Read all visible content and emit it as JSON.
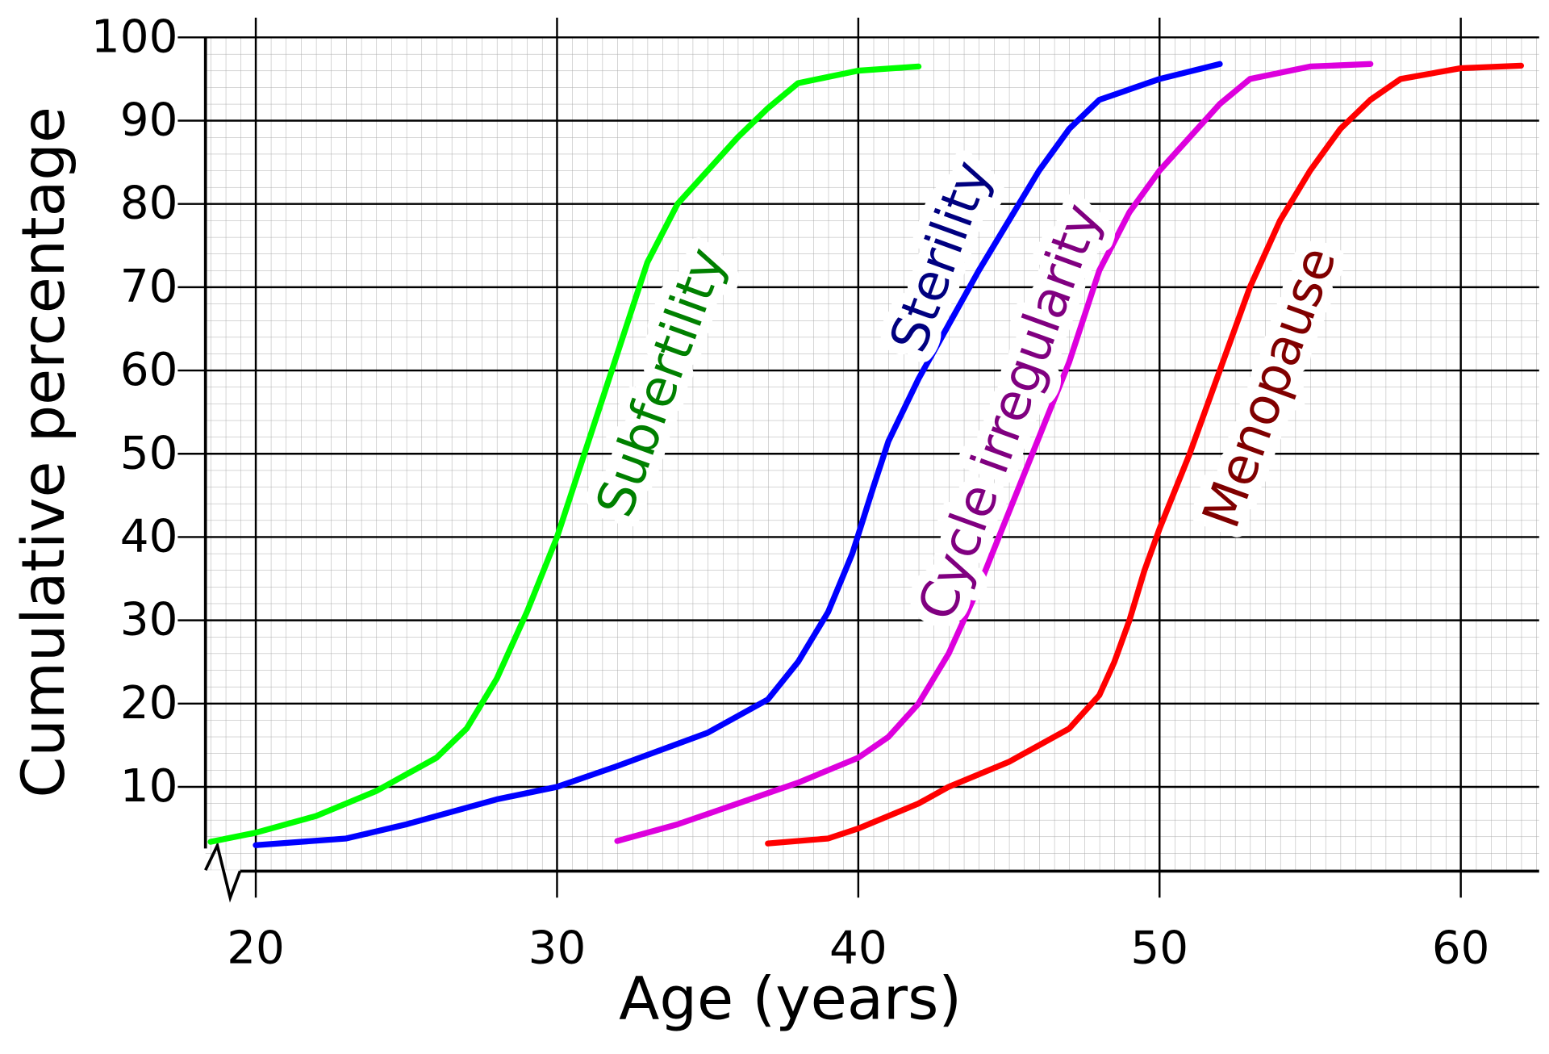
{
  "chart_data": {
    "type": "line",
    "x_label": "Age (years)",
    "y_label": "Cumulative percentage",
    "xlim": [
      18.33,
      62.6
    ],
    "ylim": [
      0,
      100
    ],
    "xticks": [
      20,
      30,
      40,
      50,
      60
    ],
    "yticks": [
      10,
      20,
      30,
      40,
      50,
      60,
      70,
      80,
      90,
      100
    ],
    "grid": true,
    "series": [
      {
        "name": "Subfertility",
        "color": "#00ff00",
        "label_color": "#008000",
        "x": [
          18.5,
          20,
          22,
          24,
          26,
          27,
          28,
          29,
          30,
          31,
          32,
          33,
          34,
          36,
          37,
          38,
          40,
          42
        ],
        "values": [
          3.4,
          4.5,
          6.5,
          9.5,
          13.5,
          17,
          23,
          31,
          40,
          51,
          62,
          73,
          80,
          88,
          91.5,
          94.5,
          96,
          96.5
        ]
      },
      {
        "name": "Sterility",
        "color": "#0000ff",
        "label_color": "#000080",
        "x": [
          20,
          23,
          25,
          28,
          30,
          32,
          35,
          37,
          38,
          39,
          39.8,
          40.5,
          41,
          42,
          43,
          44,
          45,
          46,
          47,
          48,
          50,
          52
        ],
        "values": [
          3,
          3.8,
          5.5,
          8.5,
          10,
          12.5,
          16.5,
          20.5,
          25,
          31,
          38,
          46,
          51.5,
          59,
          65.5,
          72,
          78,
          84,
          89,
          92.5,
          95,
          96.8
        ]
      },
      {
        "name": "Cycle irregularity",
        "color": "#dd00dd",
        "label_color": "#800080",
        "x": [
          32,
          34,
          36,
          38,
          40,
          41,
          42,
          43,
          44,
          45,
          46,
          47,
          48,
          49,
          50,
          51,
          52,
          53,
          55,
          57
        ],
        "values": [
          3.5,
          5.5,
          8,
          10.5,
          13.5,
          16,
          20,
          26,
          34,
          43,
          52,
          61,
          72,
          79,
          84,
          88,
          92,
          95,
          96.5,
          96.8
        ]
      },
      {
        "name": "Menopause",
        "color": "#ff0000",
        "label_color": "#800000",
        "x": [
          37,
          39,
          40,
          41,
          42,
          43,
          45,
          47,
          48,
          48.5,
          49,
          49.5,
          50,
          51,
          52,
          53,
          54,
          55,
          56,
          57,
          58,
          60,
          62
        ],
        "values": [
          3.2,
          3.8,
          5,
          6.5,
          8,
          10,
          13,
          17,
          21,
          25,
          30,
          36,
          41,
          50,
          60,
          70,
          78,
          84,
          89,
          92.5,
          95,
          96.3,
          96.6
        ]
      }
    ]
  }
}
